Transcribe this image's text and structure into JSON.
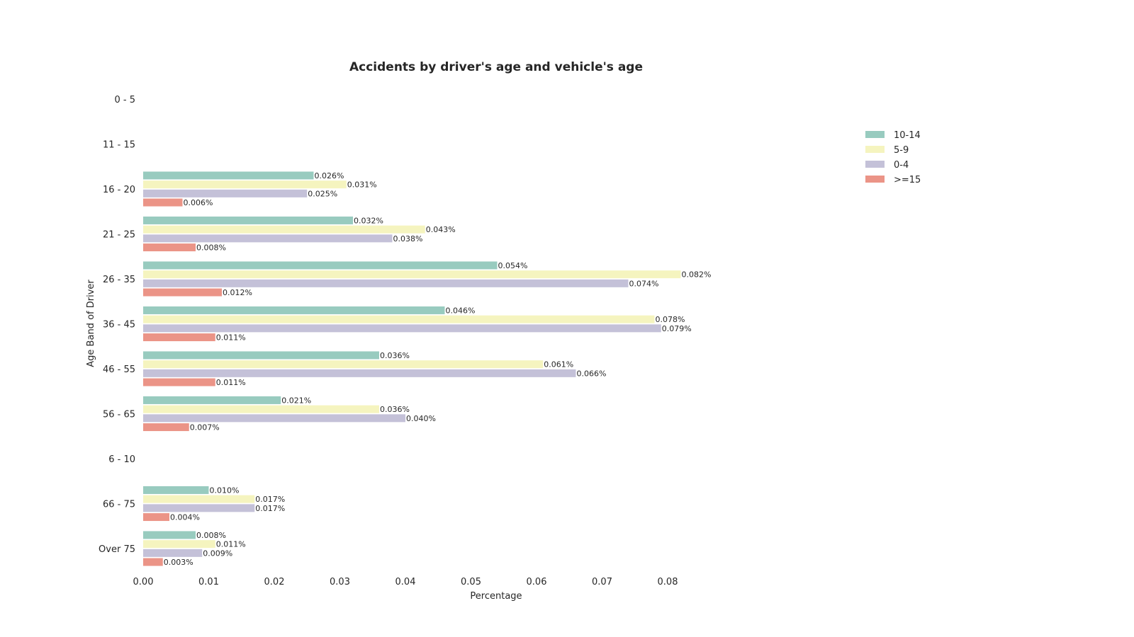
{
  "chart_data": {
    "type": "bar",
    "orientation": "horizontal",
    "title": "Accidents by driver's age and vehicle's age",
    "xlabel": "Percentage",
    "ylabel": "Age Band of Driver",
    "xlim": [
      0,
      0.086
    ],
    "xticks": [
      "0.00",
      "0.01",
      "0.02",
      "0.03",
      "0.04",
      "0.05",
      "0.06",
      "0.07",
      "0.08"
    ],
    "xtick_values": [
      0.0,
      0.01,
      0.02,
      0.03,
      0.04,
      0.05,
      0.06,
      0.07,
      0.08
    ],
    "grid": false,
    "legend_position": "top-right",
    "categories": [
      "0 - 5",
      "11 - 15",
      "16 - 20",
      "21 - 25",
      "26 - 35",
      "36 - 45",
      "46 - 55",
      "56 - 65",
      "6 - 10",
      "66 - 75",
      "Over 75"
    ],
    "series": [
      {
        "name": "10-14",
        "color": "#98cbbf",
        "values": [
          null,
          null,
          0.026,
          0.032,
          0.054,
          0.046,
          0.036,
          0.021,
          null,
          0.01,
          0.008
        ],
        "labels": [
          "",
          "",
          "0.026%",
          "0.032%",
          "0.054%",
          "0.046%",
          "0.036%",
          "0.021%",
          "",
          "0.010%",
          "0.008%"
        ]
      },
      {
        "name": "5-9",
        "color": "#f5f4bf",
        "values": [
          null,
          null,
          0.031,
          0.043,
          0.082,
          0.078,
          0.061,
          0.036,
          null,
          0.017,
          0.011
        ],
        "labels": [
          "",
          "",
          "0.031%",
          "0.043%",
          "0.082%",
          "0.078%",
          "0.061%",
          "0.036%",
          "",
          "0.017%",
          "0.011%"
        ]
      },
      {
        "name": "0-4",
        "color": "#c4c1d8",
        "values": [
          null,
          null,
          0.025,
          0.038,
          0.074,
          0.079,
          0.066,
          0.04,
          null,
          0.017,
          0.009
        ],
        "labels": [
          "",
          "",
          "0.025%",
          "0.038%",
          "0.074%",
          "0.079%",
          "0.066%",
          "0.040%",
          "",
          "0.017%",
          "0.009%"
        ]
      },
      {
        "name": ">=15",
        "color": "#eb9487",
        "values": [
          null,
          null,
          0.006,
          0.008,
          0.012,
          0.011,
          0.011,
          0.007,
          null,
          0.004,
          0.003
        ],
        "labels": [
          "",
          "",
          "0.006%",
          "0.008%",
          "0.012%",
          "0.011%",
          "0.011%",
          "0.007%",
          "",
          "0.004%",
          "0.003%"
        ]
      }
    ]
  }
}
